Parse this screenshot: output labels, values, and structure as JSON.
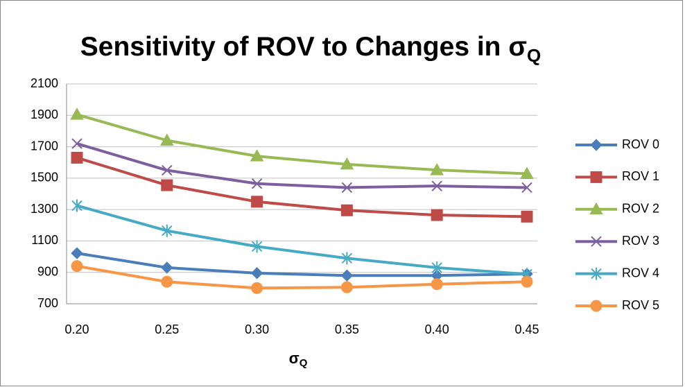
{
  "chart_data": {
    "type": "line",
    "title": "Sensitivity of ROV to Changes in σ",
    "title_subscript": "Q",
    "x_label": "σ",
    "x_label_subscript": "Q",
    "categories": [
      "0.20",
      "0.25",
      "0.30",
      "0.35",
      "0.40",
      "0.45"
    ],
    "series": [
      {
        "name": "ROV 0",
        "color": "#4a7ebb",
        "marker": "diamond",
        "values": [
          1022,
          930,
          895,
          880,
          880,
          890
        ]
      },
      {
        "name": "ROV 1",
        "color": "#be4b48",
        "marker": "square",
        "values": [
          1630,
          1455,
          1350,
          1295,
          1265,
          1255
        ]
      },
      {
        "name": "ROV 2",
        "color": "#98b954",
        "marker": "triangle",
        "values": [
          1905,
          1740,
          1640,
          1588,
          1552,
          1528
        ]
      },
      {
        "name": "ROV 3",
        "color": "#7d5fa0",
        "marker": "x",
        "values": [
          1720,
          1550,
          1465,
          1440,
          1450,
          1440
        ]
      },
      {
        "name": "ROV 4",
        "color": "#46aac5",
        "marker": "star",
        "values": [
          1325,
          1165,
          1065,
          990,
          930,
          888
        ]
      },
      {
        "name": "ROV 5",
        "color": "#f79646",
        "marker": "circle",
        "values": [
          940,
          840,
          800,
          805,
          825,
          840
        ]
      }
    ],
    "ylim": [
      700,
      2100
    ],
    "yticks": [
      700,
      900,
      1100,
      1300,
      1500,
      1700,
      1900,
      2100
    ],
    "grid": true,
    "legend": "right"
  }
}
